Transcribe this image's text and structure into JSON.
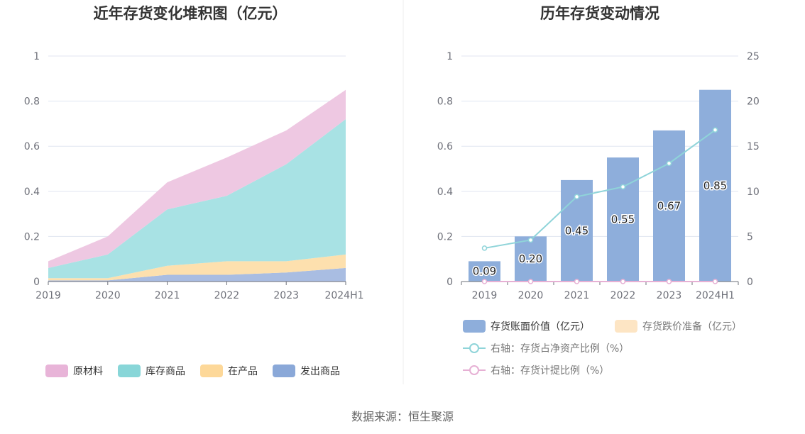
{
  "colors": {
    "raw_material": "#eec8e2",
    "stock_goods": "#a8e2e4",
    "wip": "#fde0ae",
    "shipped": "#a9bde2",
    "bar": "#8eaedb",
    "provision_legend": "#fde5c4",
    "ratio_line": "#8fd4d9",
    "provision_line": "#e6b0d4",
    "legend_raw": "#e8b4d8",
    "legend_stock": "#88d6d8",
    "legend_wip": "#fdd899",
    "legend_shipped": "#8aa8d8"
  },
  "chart_data": [
    {
      "type": "area",
      "stacked": true,
      "title": "近年存货变化堆积图（亿元）",
      "categories": [
        "2019",
        "2020",
        "2021",
        "2022",
        "2023",
        "2024H1"
      ],
      "ylim": [
        0,
        1
      ],
      "yticks": [
        "0",
        "0.2",
        "0.4",
        "0.6",
        "0.8",
        "1"
      ],
      "grid": true,
      "legend_position": "bottom",
      "series": [
        {
          "name": "发出商品",
          "values": [
            0.005,
            0.005,
            0.03,
            0.03,
            0.04,
            0.06
          ]
        },
        {
          "name": "在产品",
          "values": [
            0.01,
            0.01,
            0.04,
            0.06,
            0.05,
            0.06
          ]
        },
        {
          "name": "库存商品",
          "values": [
            0.045,
            0.105,
            0.25,
            0.29,
            0.43,
            0.6
          ]
        },
        {
          "name": "原材料",
          "values": [
            0.03,
            0.08,
            0.12,
            0.17,
            0.15,
            0.13
          ]
        }
      ],
      "legend": [
        "原材料",
        "库存商品",
        "在产品",
        "发出商品"
      ]
    },
    {
      "type": "bar",
      "title": "历年存货变动情况",
      "categories": [
        "2019",
        "2020",
        "2021",
        "2022",
        "2023",
        "2024H1"
      ],
      "ylim": [
        0,
        1
      ],
      "yticks": [
        "0",
        "0.2",
        "0.4",
        "0.6",
        "0.8",
        "1"
      ],
      "y2lim": [
        0,
        25
      ],
      "y2ticks": [
        "0",
        "5",
        "10",
        "15",
        "20",
        "25"
      ],
      "grid": true,
      "legend_position": "bottom",
      "series": [
        {
          "name": "存货账面价值（亿元）",
          "type": "bar",
          "values": [
            0.09,
            0.2,
            0.45,
            0.55,
            0.67,
            0.85
          ],
          "labels": [
            "0.09",
            "0.20",
            "0.45",
            "0.55",
            "0.67",
            "0.85"
          ]
        },
        {
          "name": "存货跌价准备（亿元）",
          "type": "bar",
          "values": [
            0,
            0,
            0,
            0,
            0,
            0
          ]
        },
        {
          "name": "右轴：存货占净资产比例（%）",
          "type": "line",
          "axis": "right",
          "values": [
            3.7,
            4.6,
            9.4,
            10.5,
            13.1,
            16.8
          ]
        },
        {
          "name": "右轴：存货计提比例（%）",
          "type": "line",
          "axis": "right",
          "values": [
            0,
            0,
            0,
            0,
            0,
            0
          ]
        }
      ]
    }
  ],
  "footer": {
    "source": "数据来源：恒生聚源"
  }
}
